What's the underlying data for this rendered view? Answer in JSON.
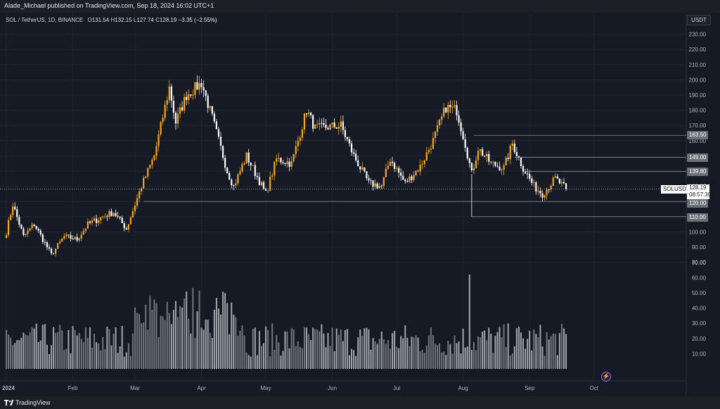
{
  "header": {
    "publisher_text": "Alade_Michael published on TradingView.com, Sep 18, 2024 16:02 UTC+1"
  },
  "legend": {
    "symbol": "SOL / TetherUS, 1D, BINANCE",
    "open_label": "O",
    "open": "131.54",
    "high_label": "H",
    "high": "132.15",
    "low_label": "L",
    "low": "127.74",
    "close_label": "C",
    "close": "128.19",
    "change": "−3.35 (−2.55%)"
  },
  "currency_button": "USDT",
  "price_labels": {
    "r163": "163.50",
    "r149": "149.00",
    "r139": "139.80",
    "r120": "120.00",
    "r110": "110.00"
  },
  "current": {
    "symbol": "SOLUSDT",
    "price": "128.19",
    "countdown": "08:57:30"
  },
  "footer": {
    "brand": "TradingView"
  },
  "colors": {
    "up": "#f5a623",
    "down": "#ffffff",
    "background": "#161a25",
    "grid": "#232632",
    "level_line": "#8a8d96"
  },
  "chart_data": {
    "type": "candlestick",
    "symbol": "SOL / TetherUS",
    "interval": "1D",
    "exchange": "BINANCE",
    "ylim": [
      70,
      235
    ],
    "y_ticks": [
      80.0,
      90.0,
      100.0,
      110.0,
      120.0,
      130.0,
      140.0,
      150.0,
      160.0,
      170.0,
      180.0,
      190.0,
      200.0,
      210.0,
      220.0,
      230.0
    ],
    "volume_axis_ticks": [
      "10.00",
      "20.00",
      "30.00",
      "40.00",
      "50.00",
      "60.00",
      "70.00"
    ],
    "x_ticks": [
      "2024",
      "Feb",
      "Mar",
      "Apr",
      "May",
      "Jun",
      "Jul",
      "Aug",
      "Sep",
      "Oct"
    ],
    "horizontal_levels": [
      {
        "value": 163.5,
        "label": "163.50",
        "from": "2024-08-06"
      },
      {
        "value": 149.0,
        "label": "149.00",
        "from": "2024-08-25"
      },
      {
        "value": 139.8,
        "label": "139.80",
        "from": "2024-08-30"
      },
      {
        "value": 120.0,
        "label": "120.00",
        "from": "2024-03-05"
      },
      {
        "value": 110.0,
        "label": "110.00",
        "from": "2024-08-05"
      }
    ],
    "last_price": 128.19,
    "close_anchors": [
      {
        "date": "2024-01-01",
        "close": 100
      },
      {
        "date": "2024-01-04",
        "close": 118
      },
      {
        "date": "2024-01-09",
        "close": 97
      },
      {
        "date": "2024-01-14",
        "close": 105
      },
      {
        "date": "2024-01-22",
        "close": 85
      },
      {
        "date": "2024-01-28",
        "close": 97
      },
      {
        "date": "2024-02-03",
        "close": 95
      },
      {
        "date": "2024-02-08",
        "close": 105
      },
      {
        "date": "2024-02-15",
        "close": 110
      },
      {
        "date": "2024-02-20",
        "close": 113
      },
      {
        "date": "2024-02-26",
        "close": 102
      },
      {
        "date": "2024-03-04",
        "close": 130
      },
      {
        "date": "2024-03-10",
        "close": 150
      },
      {
        "date": "2024-03-17",
        "close": 195
      },
      {
        "date": "2024-03-20",
        "close": 172
      },
      {
        "date": "2024-03-25",
        "close": 190
      },
      {
        "date": "2024-04-01",
        "close": 198
      },
      {
        "date": "2024-04-06",
        "close": 175
      },
      {
        "date": "2024-04-13",
        "close": 140
      },
      {
        "date": "2024-04-16",
        "close": 130
      },
      {
        "date": "2024-04-22",
        "close": 150
      },
      {
        "date": "2024-05-01",
        "close": 125
      },
      {
        "date": "2024-05-06",
        "close": 148
      },
      {
        "date": "2024-05-13",
        "close": 145
      },
      {
        "date": "2024-05-20",
        "close": 180
      },
      {
        "date": "2024-05-24",
        "close": 168
      },
      {
        "date": "2024-06-05",
        "close": 170
      },
      {
        "date": "2024-06-11",
        "close": 150
      },
      {
        "date": "2024-06-18",
        "close": 132
      },
      {
        "date": "2024-06-24",
        "close": 130
      },
      {
        "date": "2024-06-28",
        "close": 148
      },
      {
        "date": "2024-07-05",
        "close": 132
      },
      {
        "date": "2024-07-12",
        "close": 143
      },
      {
        "date": "2024-07-18",
        "close": 160
      },
      {
        "date": "2024-07-24",
        "close": 182
      },
      {
        "date": "2024-07-29",
        "close": 180
      },
      {
        "date": "2024-08-02",
        "close": 158
      },
      {
        "date": "2024-08-05",
        "close": 138
      },
      {
        "date": "2024-08-08",
        "close": 155
      },
      {
        "date": "2024-08-14",
        "close": 145
      },
      {
        "date": "2024-08-20",
        "close": 142
      },
      {
        "date": "2024-08-24",
        "close": 158
      },
      {
        "date": "2024-08-29",
        "close": 142
      },
      {
        "date": "2024-09-03",
        "close": 130
      },
      {
        "date": "2024-09-07",
        "close": 125
      },
      {
        "date": "2024-09-13",
        "close": 135
      },
      {
        "date": "2024-09-18",
        "close": 128.19
      }
    ]
  }
}
